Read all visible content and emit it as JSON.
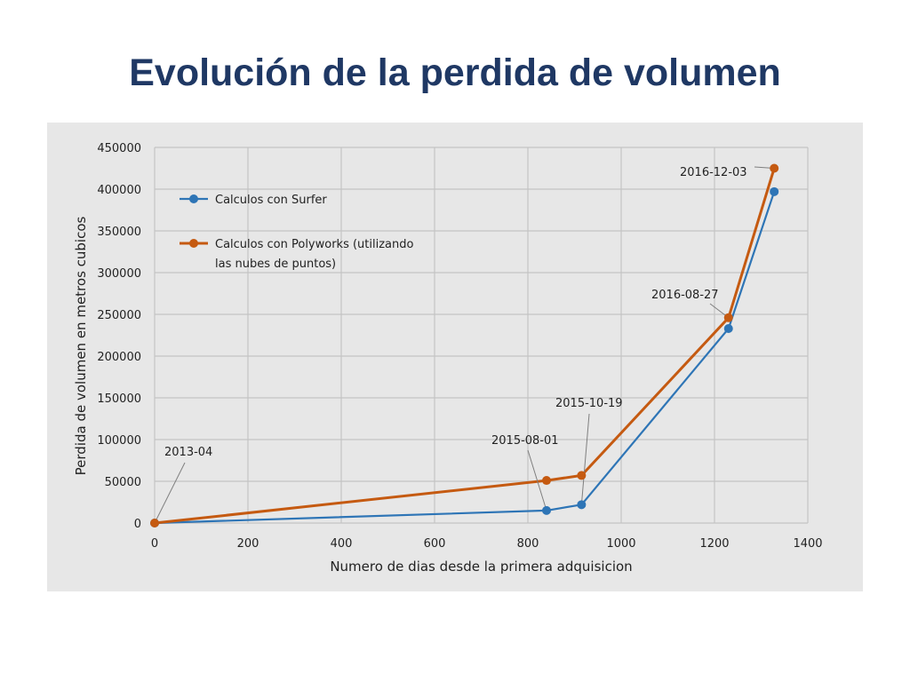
{
  "slide": {
    "title": "Evolución de la perdida de volumen"
  },
  "chart_data": {
    "type": "line",
    "title": "",
    "xlabel": "Numero de dias desde la primera adquisicion",
    "ylabel": "Perdida de volumen en metros cubicos",
    "xlim": [
      0,
      1400
    ],
    "ylim": [
      0,
      450000
    ],
    "xticks": [
      0,
      200,
      400,
      600,
      800,
      1000,
      1200,
      1400
    ],
    "yticks": [
      0,
      50000,
      100000,
      150000,
      200000,
      250000,
      300000,
      350000,
      400000,
      450000
    ],
    "grid": true,
    "legend_position": "top-left",
    "series": [
      {
        "name": "Calculos con Surfer",
        "color": "#2e75b6",
        "x": [
          0,
          840,
          915,
          1230,
          1328
        ],
        "y": [
          0,
          15000,
          22000,
          233000,
          397000
        ]
      },
      {
        "name": "Calculos con Polyworks (utilizando las nubes de puntos)",
        "name_lines": [
          "Calculos con Polyworks (utilizando",
          "las nubes de puntos)"
        ],
        "color": "#c55a11",
        "x": [
          0,
          840,
          915,
          1230,
          1328
        ],
        "y": [
          0,
          51000,
          57000,
          246000,
          425000
        ]
      }
    ],
    "annotations": [
      {
        "text": "2013-04",
        "x": 0,
        "y": 0
      },
      {
        "text": "2015-08-01",
        "x": 840,
        "y": 15000
      },
      {
        "text": "2015-10-19",
        "x": 915,
        "y": 22000
      },
      {
        "text": "2016-08-27",
        "x": 1230,
        "y": 246000
      },
      {
        "text": "2016-12-03",
        "x": 1328,
        "y": 425000
      }
    ]
  }
}
